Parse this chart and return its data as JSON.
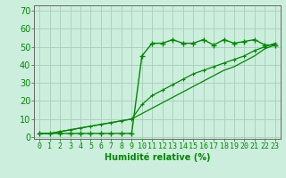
{
  "xlabel": "Humidité relative (%)",
  "ylabel_ticks": [
    0,
    10,
    20,
    30,
    40,
    50,
    60,
    70
  ],
  "xlim": [
    -0.5,
    23.5
  ],
  "ylim": [
    -1,
    73
  ],
  "background_color": "#cceedd",
  "grid_color": "#aaccbb",
  "line_color": "#008800",
  "line1_x": [
    0,
    1,
    2,
    3,
    4,
    5,
    6,
    7,
    8,
    9,
    10,
    11,
    12,
    13,
    14,
    15,
    16,
    17,
    18,
    19,
    20,
    21,
    22,
    23
  ],
  "line1_y": [
    2,
    2,
    2,
    2,
    2,
    2,
    2,
    2,
    2,
    2,
    45,
    52,
    52,
    54,
    52,
    52,
    54,
    51,
    54,
    52,
    53,
    54,
    51,
    51
  ],
  "line2_x": [
    0,
    1,
    2,
    3,
    4,
    5,
    6,
    7,
    8,
    9,
    10,
    11,
    12,
    13,
    14,
    15,
    16,
    17,
    18,
    19,
    20,
    21,
    22,
    23
  ],
  "line2_y": [
    2,
    2,
    3,
    4,
    5,
    6,
    7,
    8,
    9,
    10,
    18,
    23,
    26,
    29,
    32,
    35,
    37,
    39,
    41,
    43,
    45,
    48,
    50,
    52
  ],
  "line3_x": [
    0,
    1,
    2,
    3,
    4,
    5,
    6,
    7,
    8,
    9,
    10,
    11,
    12,
    13,
    14,
    15,
    16,
    17,
    18,
    19,
    20,
    21,
    22,
    23
  ],
  "line3_y": [
    2,
    2,
    3,
    4,
    5,
    6,
    7,
    8,
    9,
    10,
    13,
    16,
    19,
    22,
    25,
    28,
    31,
    34,
    37,
    39,
    42,
    45,
    49,
    51
  ],
  "xtick_labels": [
    "0",
    "1",
    "2",
    "3",
    "4",
    "5",
    "6",
    "7",
    "8",
    "9",
    "10",
    "11",
    "12",
    "13",
    "14",
    "15",
    "16",
    "17",
    "18",
    "19",
    "20",
    "21",
    "22",
    "23"
  ],
  "xlabel_fontsize": 7,
  "tick_fontsize": 6,
  "ytick_fontsize": 7
}
